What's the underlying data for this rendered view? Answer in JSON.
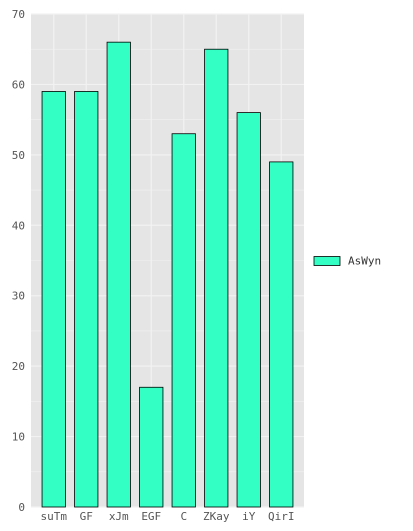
{
  "colors": {
    "panel_bg": "#E5E5E5",
    "grid": "#F2F2F2",
    "bar_fill": "#33FFC4",
    "bar_stroke": "#000000"
  },
  "chart_data": {
    "type": "bar",
    "title": "",
    "xlabel": "",
    "ylabel": "",
    "categories": [
      "suTm",
      "GF",
      "xJm",
      "EGF",
      "C",
      "ZKay",
      "iY",
      "QirI"
    ],
    "series": [
      {
        "name": "AsWyn",
        "values": [
          59,
          59,
          66,
          17,
          53,
          65,
          56,
          49
        ]
      }
    ],
    "ylim": [
      0,
      70
    ],
    "yticks": [
      0,
      10,
      20,
      30,
      40,
      50,
      60,
      70
    ],
    "grid": true,
    "legend": "right"
  }
}
